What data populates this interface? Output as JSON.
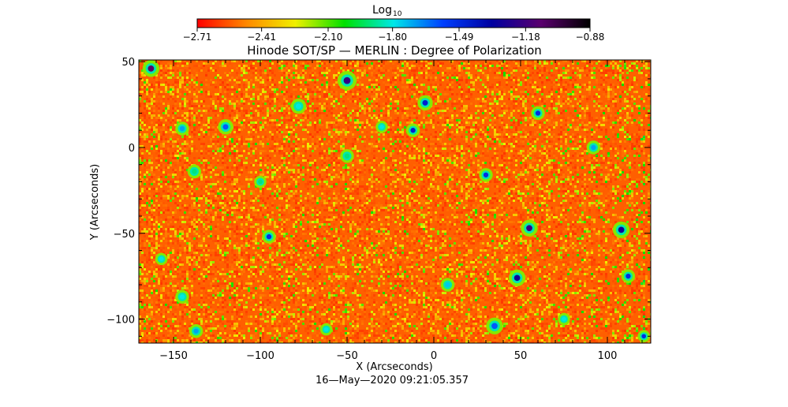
{
  "chart_data": {
    "type": "heatmap",
    "title": "Hinode SOT/SP — MERLIN : Degree of Polarization",
    "xlabel": "X (Arcseconds)",
    "ylabel": "Y (Arcseconds)",
    "xlim": [
      -170,
      125
    ],
    "ylim": [
      -114,
      51
    ],
    "x_ticks": [
      -150,
      -100,
      -50,
      0,
      50,
      100
    ],
    "y_ticks": [
      -100,
      -50,
      0,
      50
    ],
    "x_tick_labels": [
      "−150",
      "−100",
      "−50",
      "0",
      "50",
      "100"
    ],
    "y_tick_labels": [
      "−100",
      "−50",
      "0",
      "50"
    ],
    "timestamp": "16—May—2020 09:21:05.357",
    "colorbar": {
      "title": "Log",
      "title_subscript": "10",
      "scale": "log10",
      "range": [
        -2.71,
        -0.88
      ],
      "ticks": [
        -2.71,
        -2.41,
        -2.1,
        -1.8,
        -1.49,
        -1.18,
        -0.88
      ],
      "tick_labels": [
        "−2.71",
        "−2.41",
        "−2.10",
        "−1.80",
        "−1.49",
        "−1.18",
        "−0.88"
      ],
      "colors": [
        "#ff0000",
        "#ff8800",
        "#f0f000",
        "#00e000",
        "#00e8e8",
        "#0040ff",
        "#0000a0",
        "#5a006e",
        "#000000"
      ]
    },
    "background_level": -2.55,
    "noise_stripes_x_range": [
      80,
      125
    ],
    "patches": [
      {
        "x": -163,
        "y": 46,
        "r": 2.2,
        "v": -1.1
      },
      {
        "x": -50,
        "y": 39,
        "r": 2.5,
        "v": -1.2
      },
      {
        "x": -5,
        "y": 26,
        "r": 2.0,
        "v": -1.45
      },
      {
        "x": -78,
        "y": 24,
        "r": 2.0,
        "v": -1.8
      },
      {
        "x": 60,
        "y": 20,
        "r": 1.8,
        "v": -1.5
      },
      {
        "x": -120,
        "y": 12,
        "r": 2.0,
        "v": -1.6
      },
      {
        "x": -145,
        "y": 11,
        "r": 1.8,
        "v": -1.7
      },
      {
        "x": -12,
        "y": 10,
        "r": 1.8,
        "v": -1.45
      },
      {
        "x": -30,
        "y": 12,
        "r": 1.6,
        "v": -1.8
      },
      {
        "x": -50,
        "y": -5,
        "r": 1.8,
        "v": -1.9
      },
      {
        "x": 92,
        "y": 0,
        "r": 1.8,
        "v": -1.7
      },
      {
        "x": 30,
        "y": -16,
        "r": 1.8,
        "v": -1.5
      },
      {
        "x": -138,
        "y": -14,
        "r": 1.8,
        "v": -1.9
      },
      {
        "x": -100,
        "y": -20,
        "r": 1.6,
        "v": -1.9
      },
      {
        "x": 55,
        "y": -47,
        "r": 2.2,
        "v": -1.2
      },
      {
        "x": 108,
        "y": -48,
        "r": 2.2,
        "v": -1.3
      },
      {
        "x": -95,
        "y": -52,
        "r": 1.8,
        "v": -1.5
      },
      {
        "x": -157,
        "y": -65,
        "r": 1.6,
        "v": -1.8
      },
      {
        "x": 48,
        "y": -76,
        "r": 2.2,
        "v": -1.3
      },
      {
        "x": 112,
        "y": -75,
        "r": 1.8,
        "v": -1.5
      },
      {
        "x": 8,
        "y": -80,
        "r": 1.8,
        "v": -1.75
      },
      {
        "x": -145,
        "y": -87,
        "r": 1.8,
        "v": -1.8
      },
      {
        "x": 35,
        "y": -104,
        "r": 2.2,
        "v": -1.6
      },
      {
        "x": -137,
        "y": -107,
        "r": 1.8,
        "v": -1.7
      },
      {
        "x": -62,
        "y": -106,
        "r": 1.6,
        "v": -1.8
      },
      {
        "x": 121,
        "y": -110,
        "r": 1.6,
        "v": -1.5
      },
      {
        "x": 75,
        "y": -100,
        "r": 1.6,
        "v": -1.8
      }
    ]
  }
}
